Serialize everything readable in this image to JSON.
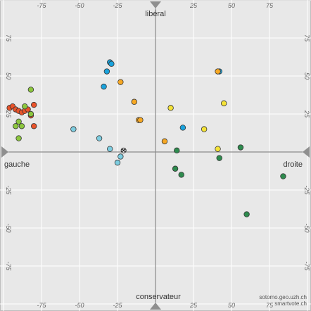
{
  "chart_data": {
    "type": "scatter",
    "title": "",
    "xlim": [
      -100,
      100
    ],
    "ylim": [
      -100,
      100
    ],
    "grid": true,
    "ticks": [
      -75,
      -50,
      -25,
      25,
      50,
      75
    ],
    "axis_labels": {
      "top": "libéral",
      "bottom": "conservateur",
      "left": "gauche",
      "right": "droite"
    },
    "credits": [
      "sotomo.geo.uzh.ch",
      "smartvote.ch"
    ],
    "colors": {
      "red": "#e8532a",
      "lightgreen": "#8cc63e",
      "lightblue": "#7dcde0",
      "blue": "#1aa3dd",
      "orange": "#f7a823",
      "yellow": "#f5e337",
      "green": "#2e8b4e",
      "black": "#222222"
    },
    "groups": [
      {
        "color": "red",
        "points": [
          [
            -96,
            29
          ],
          [
            -94,
            30
          ],
          [
            -92,
            28
          ],
          [
            -90,
            27
          ],
          [
            -88,
            26
          ],
          [
            -86,
            27
          ],
          [
            -84,
            28
          ],
          [
            -82,
            24
          ],
          [
            -80,
            17
          ],
          [
            -80,
            31
          ]
        ]
      },
      {
        "color": "lightgreen",
        "points": [
          [
            -82,
            41
          ],
          [
            -86,
            30
          ],
          [
            -82,
            25
          ],
          [
            -90,
            20
          ],
          [
            -88,
            17
          ],
          [
            -92,
            17
          ],
          [
            -90,
            9
          ]
        ]
      },
      {
        "color": "lightblue",
        "points": [
          [
            -54,
            15
          ],
          [
            -37,
            9
          ],
          [
            -30,
            2
          ],
          [
            -23,
            -3
          ],
          [
            -25,
            -7
          ]
        ]
      },
      {
        "color": "blue",
        "points": [
          [
            -30,
            59
          ],
          [
            -29,
            58
          ],
          [
            -32,
            53
          ],
          [
            -34,
            43
          ],
          [
            18,
            16
          ],
          [
            42,
            53
          ]
        ]
      },
      {
        "color": "orange",
        "points": [
          [
            -23,
            46
          ],
          [
            -14,
            33
          ],
          [
            -11,
            21
          ],
          [
            6,
            7
          ],
          [
            41,
            53
          ],
          [
            -10,
            21
          ]
        ]
      },
      {
        "color": "yellow",
        "points": [
          [
            10,
            29
          ],
          [
            32,
            15
          ],
          [
            41,
            2
          ],
          [
            45,
            32
          ]
        ]
      },
      {
        "color": "green",
        "points": [
          [
            14,
            1
          ],
          [
            13,
            -11
          ],
          [
            17,
            -15
          ],
          [
            42,
            -4
          ],
          [
            56,
            3
          ],
          [
            60,
            -41
          ],
          [
            84,
            -16
          ]
        ]
      },
      {
        "color": "black",
        "points": [
          [
            -21,
            1
          ]
        ]
      }
    ]
  }
}
